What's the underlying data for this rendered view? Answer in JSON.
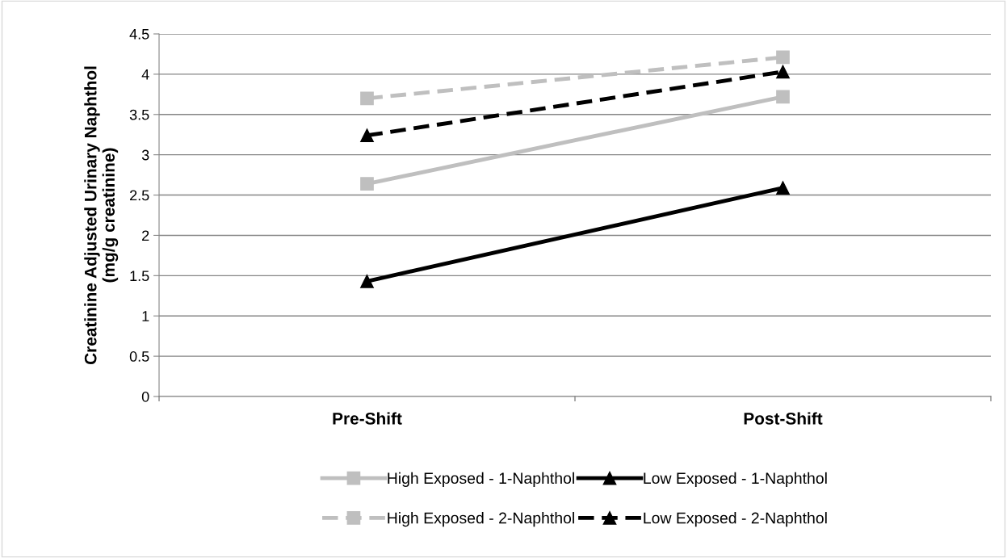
{
  "chart_data": {
    "type": "line",
    "ylabel": "Creatinine Adjusted Urinary Naphthol\n(mg/g creatinine)",
    "categories": [
      "Pre-Shift",
      "Post-Shift"
    ],
    "series": [
      {
        "name": "High Exposed - 1-Naphthol",
        "color": "#bfbfbf",
        "marker": "square",
        "line_style": "solid",
        "values": [
          2.64,
          3.72
        ]
      },
      {
        "name": "High Exposed - 2-Naphthol",
        "color": "#bfbfbf",
        "marker": "square",
        "line_style": "dashed",
        "values": [
          3.7,
          4.21
        ]
      },
      {
        "name": "Low Exposed - 1-Naphthol",
        "color": "#000000",
        "marker": "triangle",
        "line_style": "solid",
        "values": [
          1.43,
          2.59
        ]
      },
      {
        "name": "Low Exposed - 2-Naphthol",
        "color": "#000000",
        "marker": "triangle",
        "line_style": "dashed",
        "values": [
          3.24,
          4.03
        ]
      }
    ],
    "ylim": [
      0,
      4.5
    ],
    "yticks": [
      0,
      0.5,
      1,
      1.5,
      2,
      2.5,
      3,
      3.5,
      4,
      4.5
    ],
    "grid": "y",
    "legend": "bottom"
  }
}
